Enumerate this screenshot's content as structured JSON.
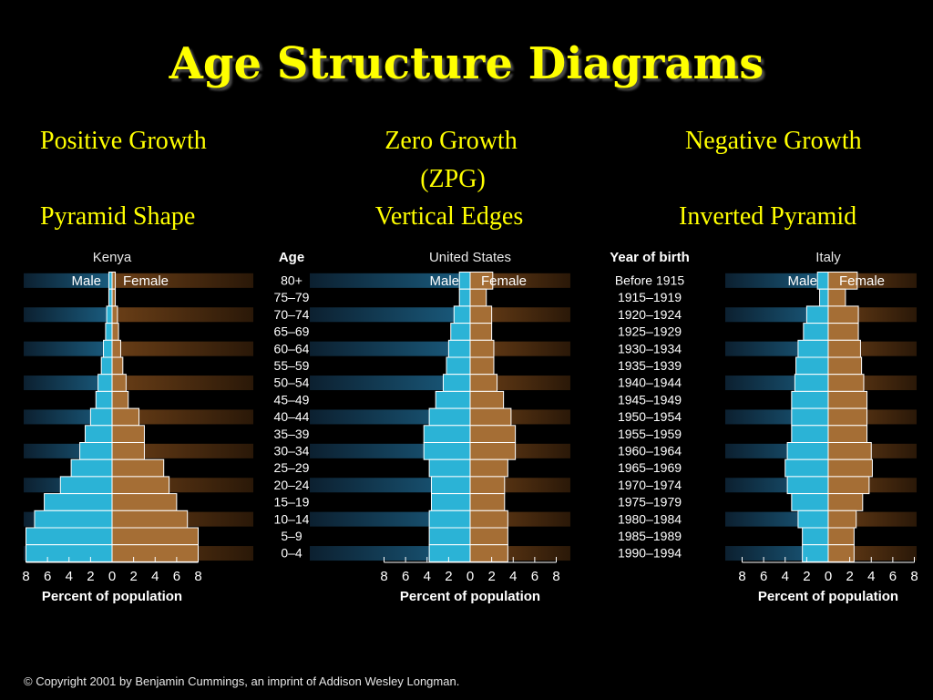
{
  "title": "Age Structure Diagrams",
  "captions": {
    "col1": {
      "line1": "Positive Growth",
      "line2": "Pyramid  Shape"
    },
    "col2": {
      "line1": "Zero  Growth",
      "line1b": "(ZPG)",
      "line2": "Vertical Edges"
    },
    "col3": {
      "line1": "Negative Growth",
      "line2": "Inverted Pyramid"
    }
  },
  "copyright": "© Copyright 2001 by Benjamin Cummings, an imprint of Addison Wesley Longman.",
  "colors": {
    "male": "#2bb3d6",
    "female": "#a56e35",
    "male_band": "#1a5d80",
    "female_band": "#6b3f17",
    "text": "#ffffff",
    "title": "#ffff00"
  },
  "chart_data": {
    "type": "bar",
    "orientation": "horizontal-population-pyramid",
    "age_header": "Age",
    "birth_header": "Year of birth",
    "age_groups": [
      "80+",
      "75–79",
      "70–74",
      "65–69",
      "60–64",
      "55–59",
      "50–54",
      "45–49",
      "40–44",
      "35–39",
      "30–34",
      "25–29",
      "20–24",
      "15–19",
      "10–14",
      "5–9",
      "0–4"
    ],
    "years_of_birth": [
      "Before 1915",
      "1915–1919",
      "1920–1924",
      "1925–1929",
      "1930–1934",
      "1935–1939",
      "1940–1944",
      "1945–1949",
      "1950–1954",
      "1955–1959",
      "1960–1964",
      "1965–1969",
      "1970–1974",
      "1975–1979",
      "1980–1984",
      "1985–1989",
      "1990–1994"
    ],
    "xlabel": "Percent of population",
    "x_ticks": [
      "8",
      "6",
      "4",
      "2",
      "0",
      "2",
      "4",
      "6",
      "8"
    ],
    "xlim": [
      -8,
      8
    ],
    "male_label": "Male",
    "female_label": "Female",
    "charts": [
      {
        "country": "Kenya",
        "male": [
          0.3,
          0.3,
          0.5,
          0.6,
          0.8,
          1.0,
          1.3,
          1.5,
          2.0,
          2.5,
          3.0,
          3.8,
          4.8,
          6.3,
          7.2,
          8.0,
          8.0
        ],
        "female": [
          0.3,
          0.3,
          0.5,
          0.6,
          0.8,
          1.0,
          1.3,
          1.5,
          2.5,
          3.0,
          3.0,
          4.8,
          5.3,
          6.0,
          7.0,
          8.0,
          8.0
        ]
      },
      {
        "country": "United States",
        "male": [
          1.0,
          1.0,
          1.5,
          1.8,
          2.0,
          2.2,
          2.5,
          3.2,
          3.8,
          4.3,
          4.3,
          3.8,
          3.6,
          3.6,
          3.8,
          3.8,
          3.8
        ],
        "female": [
          2.1,
          1.5,
          2.0,
          2.0,
          2.2,
          2.2,
          2.5,
          3.1,
          3.8,
          4.2,
          4.2,
          3.5,
          3.2,
          3.2,
          3.5,
          3.5,
          3.5
        ]
      },
      {
        "country": "Italy",
        "male": [
          1.0,
          0.8,
          2.0,
          2.3,
          2.8,
          3.0,
          3.1,
          3.4,
          3.4,
          3.4,
          3.8,
          4.0,
          3.8,
          3.4,
          2.8,
          2.4,
          2.4
        ],
        "female": [
          2.7,
          1.6,
          2.8,
          2.8,
          3.0,
          3.1,
          3.3,
          3.6,
          3.6,
          3.6,
          4.0,
          4.1,
          3.8,
          3.2,
          2.6,
          2.4,
          2.4
        ]
      }
    ]
  }
}
